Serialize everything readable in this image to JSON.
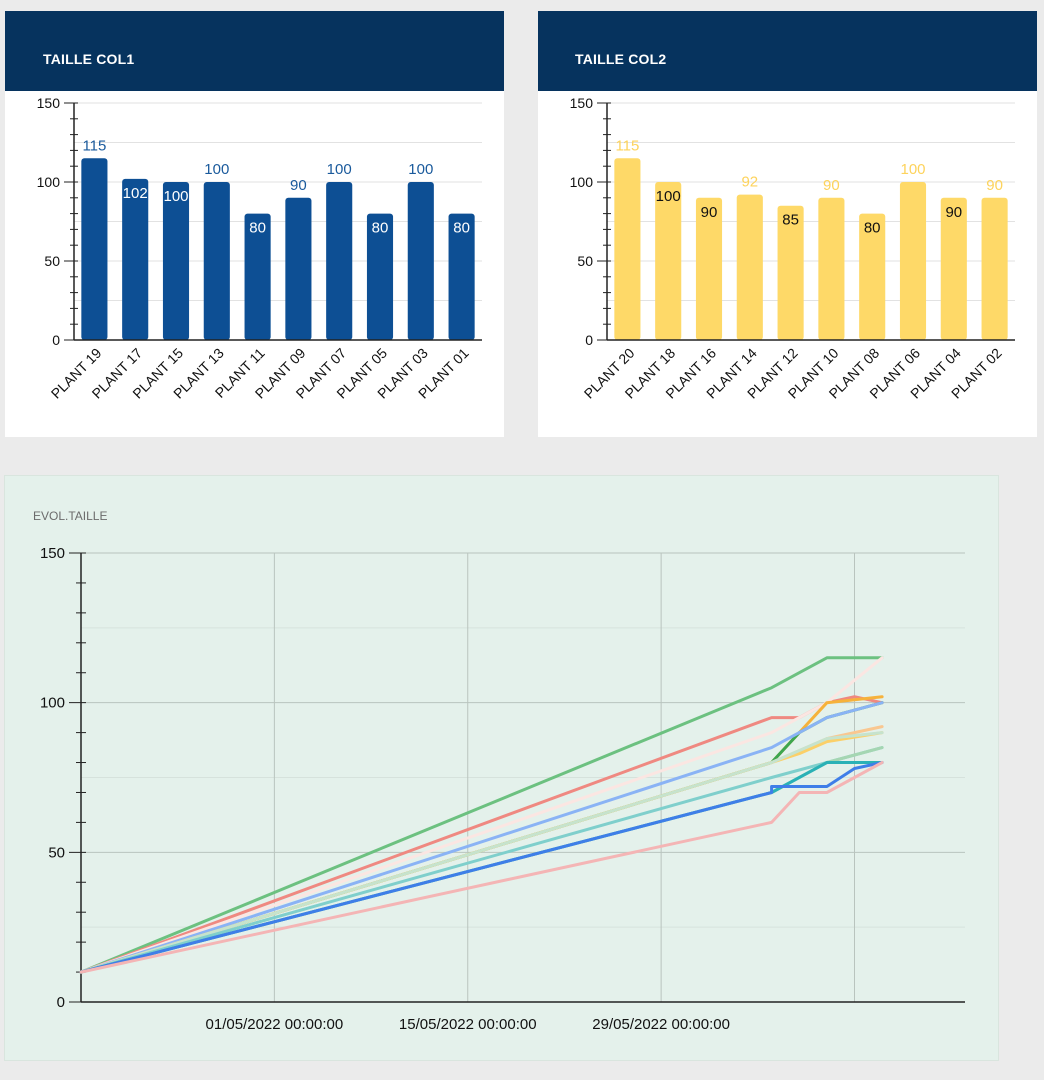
{
  "col1": {
    "title": "TAILLE COL1",
    "chart_data": {
      "type": "bar",
      "categories": [
        "PLANT 19",
        "PLANT 17",
        "PLANT 15",
        "PLANT 13",
        "PLANT 11",
        "PLANT 09",
        "PLANT 07",
        "PLANT 05",
        "PLANT 03",
        "PLANT 01"
      ],
      "values": [
        115,
        102,
        100,
        100,
        80,
        90,
        100,
        80,
        100,
        80
      ],
      "data_labels": [
        "115",
        "102",
        "100",
        "100",
        "80",
        "90",
        "100",
        "80",
        "100",
        "80"
      ],
      "yticks": [
        "0",
        "50",
        "100",
        "150"
      ],
      "ylim": [
        0,
        150
      ],
      "color": "#0d4f94",
      "label_color": "#1a5a9c"
    }
  },
  "col2": {
    "title": "TAILLE COL2",
    "chart_data": {
      "type": "bar",
      "categories": [
        "PLANT 20",
        "PLANT 18",
        "PLANT 16",
        "PLANT 14",
        "PLANT 12",
        "PLANT 10",
        "PLANT 08",
        "PLANT 06",
        "PLANT 04",
        "PLANT 02"
      ],
      "values": [
        115,
        100,
        90,
        92,
        85,
        90,
        80,
        100,
        90,
        90
      ],
      "data_labels": [
        "115",
        "100",
        "90",
        "92",
        "85",
        "90",
        "80",
        "100",
        "90",
        "90"
      ],
      "yticks": [
        "0",
        "50",
        "100",
        "150"
      ],
      "ylim": [
        0,
        150
      ],
      "color": "#fed968",
      "label_color": "#fdd35c"
    }
  },
  "evol": {
    "title": "EVOL.TAILLE",
    "chart_data": {
      "type": "line",
      "yticks": [
        "0",
        "50",
        "100",
        "150"
      ],
      "ylim": [
        0,
        150
      ],
      "xlim": [
        "2022-04-17",
        "2022-06-20"
      ],
      "xticks": [
        {
          "date": "2022-05-01",
          "label": "01/05/2022 00:00:00"
        },
        {
          "date": "2022-05-15",
          "label": "15/05/2022 00:00:00"
        },
        {
          "date": "2022-05-29",
          "label": "29/05/2022 00:00:00"
        },
        {
          "date": "2022-06-12",
          "label": ""
        }
      ],
      "grid": true,
      "series": [
        {
          "color": "#6cc180",
          "points": [
            [
              "2022-04-17",
              10
            ],
            [
              "2022-06-06",
              105
            ],
            [
              "2022-06-08",
              110
            ],
            [
              "2022-06-10",
              115
            ],
            [
              "2022-06-14",
              115
            ]
          ]
        },
        {
          "color": "#ef8981",
          "points": [
            [
              "2022-04-17",
              10
            ],
            [
              "2022-06-06",
              95
            ],
            [
              "2022-06-08",
              95
            ],
            [
              "2022-06-10",
              100
            ],
            [
              "2022-06-12",
              102
            ],
            [
              "2022-06-14",
              100
            ]
          ]
        },
        {
          "color": "#fbe6e2",
          "points": [
            [
              "2022-04-17",
              10
            ],
            [
              "2022-06-06",
              90
            ],
            [
              "2022-06-10",
              100
            ],
            [
              "2022-06-14",
              115
            ]
          ]
        },
        {
          "color": "#f6b23b",
          "points": [
            [
              "2022-04-17",
              10
            ],
            [
              "2022-06-06",
              80
            ],
            [
              "2022-06-08",
              90
            ],
            [
              "2022-06-10",
              100
            ],
            [
              "2022-06-14",
              102
            ]
          ]
        },
        {
          "color": "#3da64f",
          "points": [
            [
              "2022-04-17",
              10
            ],
            [
              "2022-06-06",
              80
            ],
            [
              "2022-06-08",
              90
            ],
            [
              "2022-06-10",
              95
            ],
            [
              "2022-06-14",
              100
            ]
          ]
        },
        {
          "color": "#8ab3f5",
          "points": [
            [
              "2022-04-17",
              10
            ],
            [
              "2022-06-06",
              85
            ],
            [
              "2022-06-08",
              90
            ],
            [
              "2022-06-10",
              95
            ],
            [
              "2022-06-14",
              100
            ]
          ]
        },
        {
          "color": "#f9c790",
          "points": [
            [
              "2022-04-17",
              10
            ],
            [
              "2022-06-06",
              80
            ],
            [
              "2022-06-08",
              84
            ],
            [
              "2022-06-10",
              88
            ],
            [
              "2022-06-14",
              92
            ]
          ]
        },
        {
          "color": "#fbd069",
          "points": [
            [
              "2022-04-17",
              10
            ],
            [
              "2022-06-06",
              80
            ],
            [
              "2022-06-08",
              83
            ],
            [
              "2022-06-10",
              87
            ],
            [
              "2022-06-14",
              90
            ]
          ]
        },
        {
          "color": "#c6e3cd",
          "points": [
            [
              "2022-04-17",
              10
            ],
            [
              "2022-06-06",
              80
            ],
            [
              "2022-06-10",
              88
            ],
            [
              "2022-06-14",
              90
            ]
          ]
        },
        {
          "color": "#7fcfcc",
          "points": [
            [
              "2022-04-17",
              10
            ],
            [
              "2022-06-06",
              75
            ],
            [
              "2022-06-10",
              80
            ],
            [
              "2022-06-14",
              85
            ]
          ]
        },
        {
          "color": "#a5d6b2",
          "points": [
            [
              "2022-04-17",
              10
            ],
            [
              "2022-06-06",
              70
            ],
            [
              "2022-06-10",
              80
            ],
            [
              "2022-06-14",
              85
            ]
          ]
        },
        {
          "color": "#2ab1b6",
          "points": [
            [
              "2022-04-17",
              10
            ],
            [
              "2022-06-06",
              70
            ],
            [
              "2022-06-10",
              80
            ],
            [
              "2022-06-14",
              80
            ]
          ]
        },
        {
          "color": "#3f7ee8",
          "points": [
            [
              "2022-04-17",
              10
            ],
            [
              "2022-06-06",
              70
            ],
            [
              "2022-06-06",
              72
            ],
            [
              "2022-06-10",
              72
            ],
            [
              "2022-06-12",
              78
            ],
            [
              "2022-06-14",
              80
            ]
          ]
        },
        {
          "color": "#f4b5b5",
          "points": [
            [
              "2022-04-17",
              10
            ],
            [
              "2022-06-06",
              60
            ],
            [
              "2022-06-08",
              70
            ],
            [
              "2022-06-10",
              70
            ],
            [
              "2022-06-14",
              80
            ]
          ]
        }
      ]
    }
  }
}
